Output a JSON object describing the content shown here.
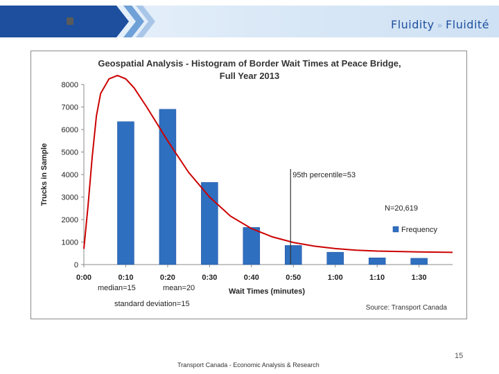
{
  "header": {
    "brand_left": "Fluidity",
    "brand_separator": "»",
    "brand_right": "Fluidité",
    "colors": {
      "dark_blue": "#1d4f9e",
      "light_blue": "#dbe9f7",
      "accent": "#6fa0d8"
    }
  },
  "chart_data": {
    "type": "bar",
    "title": "Geospatial Analysis - Histogram of Border Wait Times at Peace Bridge,",
    "subtitle": "Full Year 2013",
    "xlabel": "Wait Times (minutes)",
    "ylabel": "Trucks in Sample",
    "categories": [
      "0:00",
      "0:10",
      "0:20",
      "0:30",
      "0:40",
      "0:50",
      "1:00",
      "1:10",
      "1:30"
    ],
    "series": [
      {
        "name": "Frequency",
        "values": [
          0,
          6350,
          6900,
          3650,
          1650,
          850,
          550,
          300,
          280
        ],
        "color": "#2f6fbf"
      }
    ],
    "yticks": [
      "0",
      "1000",
      "2000",
      "3000",
      "4000",
      "5000",
      "6000",
      "7000",
      "8000"
    ],
    "ylim": [
      0,
      8000
    ],
    "curve": {
      "color": "#cc0000",
      "x": [
        0,
        0.1,
        0.2,
        0.3,
        0.4,
        0.6,
        0.8,
        1,
        1.2,
        1.5,
        2,
        2.5,
        3,
        3.5,
        4,
        4.5,
        5,
        5.5,
        6,
        6.5,
        7,
        7.5,
        8,
        8.5,
        8.8
      ],
      "y": [
        700,
        2600,
        4800,
        6600,
        7600,
        8250,
        8400,
        8250,
        7850,
        7000,
        5500,
        4100,
        3000,
        2150,
        1600,
        1230,
        980,
        820,
        710,
        640,
        600,
        580,
        560,
        550,
        540
      ]
    },
    "percentile_line": {
      "x": 5,
      "label": "95th percentile=53"
    },
    "annotations": {
      "n": "N=20,619",
      "median": "median=15",
      "mean": "mean=20",
      "std": "standard deviation=15",
      "source": "Source: Transport Canada"
    },
    "legend_position": "right",
    "grid": false
  },
  "footer": {
    "page_number": "15",
    "text": "Transport Canada - Economic Analysis & Research"
  }
}
